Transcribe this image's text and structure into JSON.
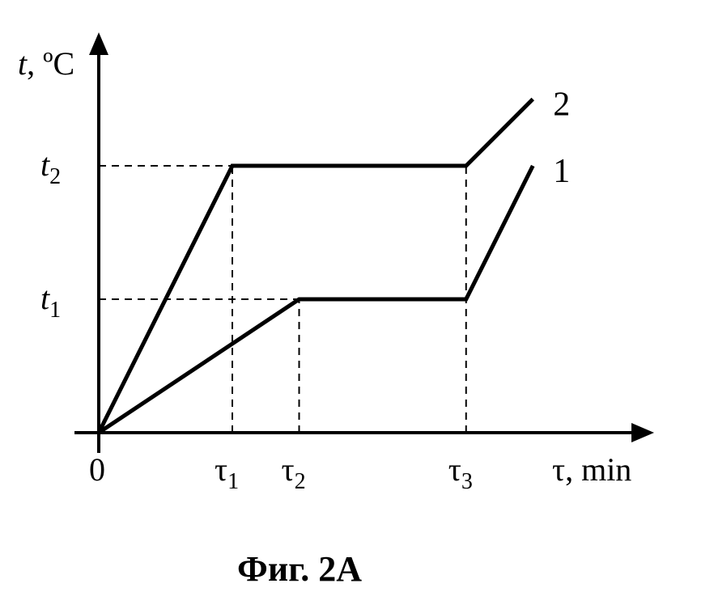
{
  "chart_data": {
    "type": "line",
    "ylabel_var": "t",
    "ylabel_unit": ", ºC",
    "xlabel": "τ, min",
    "origin_label": "0",
    "x_ticks": [
      {
        "base": "τ",
        "sub": "1",
        "x": 1.0
      },
      {
        "base": "τ",
        "sub": "2",
        "x": 1.5
      },
      {
        "base": "τ",
        "sub": "3",
        "x": 2.75
      }
    ],
    "y_ticks": [
      {
        "base": "t",
        "sub": "2",
        "y": 2.0
      },
      {
        "base": "t",
        "sub": "1",
        "y": 1.0
      }
    ],
    "xlim": [
      0,
      3.4
    ],
    "ylim": [
      0,
      2.75
    ],
    "series": [
      {
        "name": "2",
        "points": [
          [
            0,
            0
          ],
          [
            1.0,
            2.0
          ],
          [
            2.75,
            2.0
          ],
          [
            3.25,
            2.5
          ]
        ]
      },
      {
        "name": "1",
        "points": [
          [
            0,
            0
          ],
          [
            1.5,
            1.0
          ],
          [
            2.75,
            1.0
          ],
          [
            3.25,
            2.0
          ]
        ]
      }
    ],
    "guides": [
      {
        "axis": "y",
        "y": 2.0,
        "x_to": 2.75
      },
      {
        "axis": "y",
        "y": 1.0,
        "x_to": 1.5
      },
      {
        "axis": "x",
        "x": 1.0,
        "y_to": 2.0
      },
      {
        "axis": "x",
        "x": 1.5,
        "y_to": 1.0
      },
      {
        "axis": "x",
        "x": 2.75,
        "y_to": 2.0
      }
    ],
    "grid": false,
    "legend": "none"
  },
  "caption": "Фиг. 2А"
}
